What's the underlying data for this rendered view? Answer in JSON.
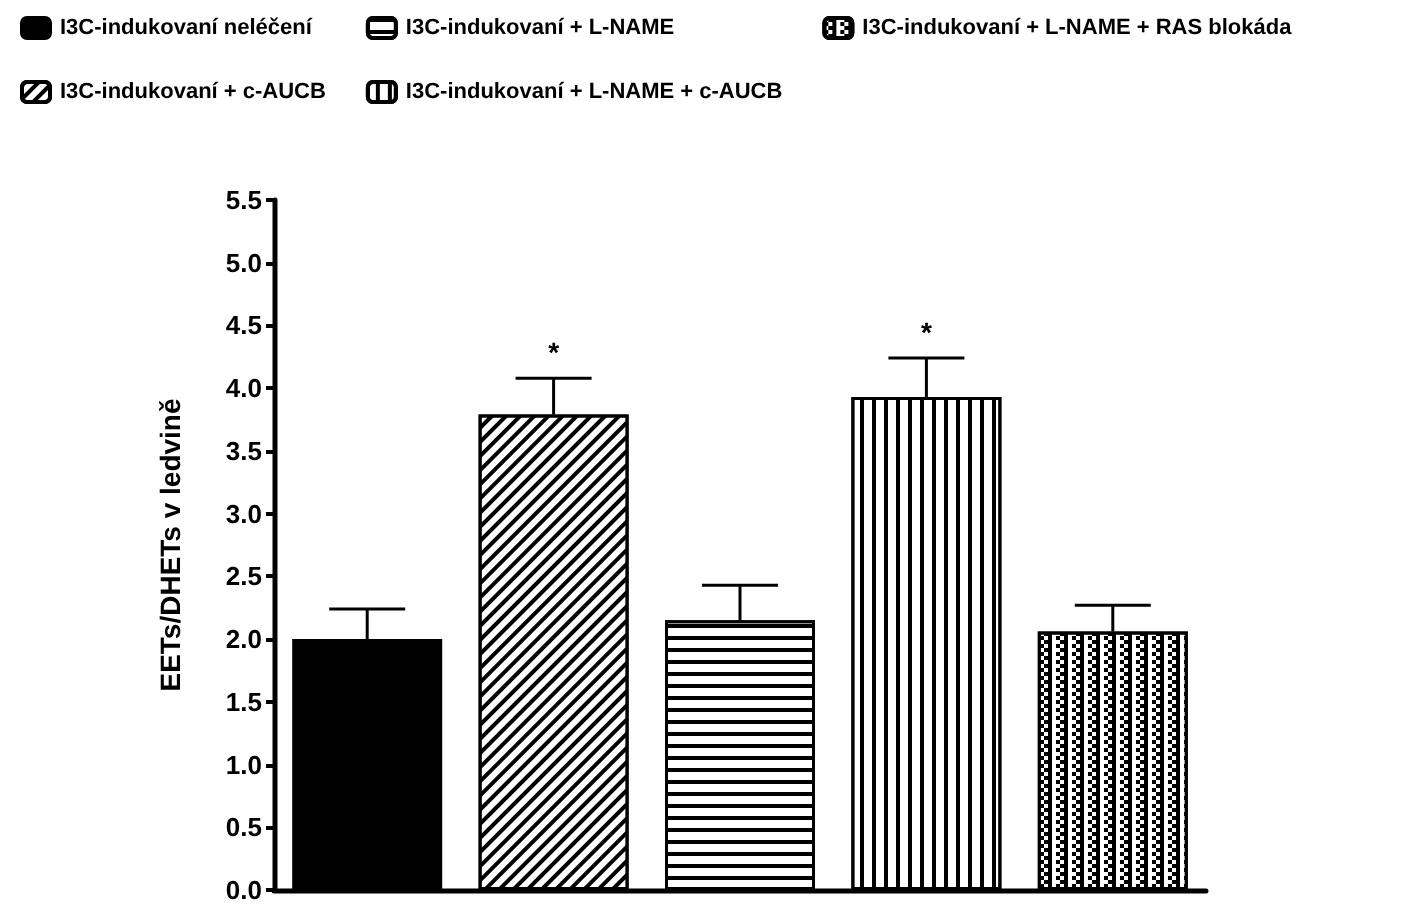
{
  "chart_data": {
    "type": "bar",
    "ylabel": "EETs/DHETs v ledvině",
    "categories": [
      null,
      null,
      null,
      null,
      null
    ],
    "series": [
      {
        "name": "I3C-indukovaní neléčení",
        "color": "#000000",
        "values": [
          2.0,
          null,
          null,
          null,
          null
        ],
        "errors": [
          [
            2.0,
            2.24
          ],
          null,
          null,
          null,
          null
        ],
        "value_labels": [
          null,
          null,
          null,
          null,
          null
        ]
      },
      {
        "name": "I3C-indukovaní + c-AUCB",
        "color": "#000000",
        "values": [
          null,
          3.79,
          null,
          null,
          null
        ],
        "errors": [
          null,
          [
            3.79,
            4.08
          ],
          null,
          null,
          null
        ],
        "value_labels": [
          null,
          "*",
          null,
          null,
          null
        ]
      },
      {
        "name": "I3C-indukovaní + L-NAME",
        "color": "#000000",
        "values": [
          null,
          null,
          2.15,
          null,
          null
        ],
        "errors": [
          null,
          null,
          [
            2.15,
            2.43
          ],
          null,
          null
        ],
        "value_labels": [
          null,
          null,
          null,
          null,
          null
        ]
      },
      {
        "name": "I3C-indukovaní + L-NAME + c-AUCB",
        "color": "#000000",
        "values": [
          null,
          null,
          null,
          3.93,
          null
        ],
        "errors": [
          null,
          null,
          null,
          [
            3.93,
            4.24
          ],
          null
        ],
        "value_labels": [
          null,
          null,
          null,
          "*",
          null
        ]
      },
      {
        "name": "I3C-indukovaní + L-NAME + RAS blokáda",
        "color": "#000000",
        "values": [
          null,
          null,
          null,
          null,
          2.06
        ],
        "errors": [
          null,
          null,
          null,
          null,
          [
            2.06,
            2.27
          ]
        ],
        "value_labels": [
          null,
          null,
          null,
          null,
          null
        ]
      }
    ],
    "ylim": [
      0,
      5.5
    ],
    "yticks": [
      {
        "value": 0,
        "label": "0.0"
      },
      {
        "value": 0.5,
        "label": "0.5"
      },
      {
        "value": 1,
        "label": "1.0"
      },
      {
        "value": 1.5,
        "label": "1.5"
      },
      {
        "value": 2,
        "label": "2.0"
      },
      {
        "value": 2.5,
        "label": "2.5"
      },
      {
        "value": 3,
        "label": "3.0"
      },
      {
        "value": 3.5,
        "label": "3.5"
      },
      {
        "value": 4,
        "label": "4.0"
      },
      {
        "value": 4.5,
        "label": "4.5"
      },
      {
        "value": 5,
        "label": "5.0"
      },
      {
        "value": 5.5,
        "label": "5.5"
      }
    ],
    "grid": false,
    "legend": "top left"
  }
}
